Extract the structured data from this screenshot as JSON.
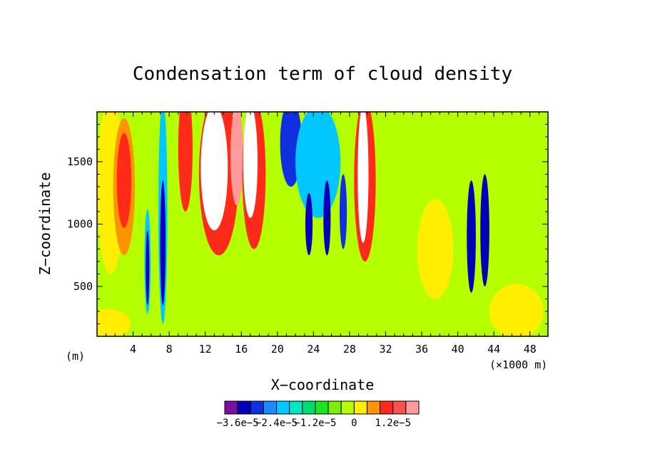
{
  "chart_data": {
    "type": "heatmap",
    "title": "Condensation term of cloud density",
    "xlabel": "X−coordinate",
    "ylabel": "Z−coordinate",
    "x_unit_left": "(m)",
    "x_unit_right": "(×1000 m)",
    "xlim": [
      0,
      50
    ],
    "ylim": [
      100,
      1900
    ],
    "x_ticks": [
      4,
      8,
      12,
      16,
      20,
      24,
      28,
      32,
      36,
      40,
      44,
      48
    ],
    "y_ticks": [
      500,
      1000,
      1500
    ],
    "colorbar": {
      "colors": [
        "#7a0fa0",
        "#0000b8",
        "#1030e0",
        "#1a8cff",
        "#00c8ff",
        "#00e6c0",
        "#00dc73",
        "#1ee61e",
        "#78f000",
        "#b4ff00",
        "#ffee00",
        "#ff9400",
        "#ff2a18",
        "#ff5050",
        "#ff9b9b"
      ],
      "labels": [
        {
          "text": "−3.6e−5",
          "boundary": 1
        },
        {
          "text": "−2.4e−5",
          "boundary": 4
        },
        {
          "text": "−1.2e−5",
          "boundary": 7
        },
        {
          "text": "0",
          "boundary": 10
        },
        {
          "text": "1.2e−5",
          "boundary": 13
        }
      ]
    },
    "fields": {
      "background": "#b4ff00",
      "blobs": [
        {
          "x": 1.5,
          "z": 1300,
          "sx": 1.5,
          "sz": 700,
          "level": "#ffee00"
        },
        {
          "x": 1.2,
          "z": 200,
          "sx": 2.5,
          "sz": 120,
          "level": "#ffee00"
        },
        {
          "x": 3.0,
          "z": 1300,
          "sx": 1.2,
          "sz": 550,
          "level": "#ff9400"
        },
        {
          "x": 3.0,
          "z": 1350,
          "sx": 0.8,
          "sz": 380,
          "level": "#ff2a18"
        },
        {
          "x": 5.6,
          "z": 700,
          "sx": 0.35,
          "sz": 420,
          "level": "#00c8ff"
        },
        {
          "x": 5.6,
          "z": 650,
          "sx": 0.2,
          "sz": 300,
          "level": "#0000b8"
        },
        {
          "x": 7.3,
          "z": 1100,
          "sx": 0.5,
          "sz": 900,
          "level": "#00c8ff"
        },
        {
          "x": 7.3,
          "z": 850,
          "sx": 0.3,
          "sz": 500,
          "level": "#0000b8"
        },
        {
          "x": 9.8,
          "z": 1600,
          "sx": 0.8,
          "sz": 500,
          "level": "#ff2a18"
        },
        {
          "x": 13.5,
          "z": 1400,
          "sx": 2.2,
          "sz": 650,
          "level": "#ff2a18"
        },
        {
          "x": 13.0,
          "z": 1450,
          "sx": 1.5,
          "sz": 500,
          "level": "#ffffff"
        },
        {
          "x": 15.5,
          "z": 1550,
          "sx": 0.7,
          "sz": 400,
          "level": "#ff9b9b"
        },
        {
          "x": 17.4,
          "z": 1400,
          "sx": 1.3,
          "sz": 600,
          "level": "#ff2a18"
        },
        {
          "x": 17.0,
          "z": 1500,
          "sx": 0.8,
          "sz": 450,
          "level": "#ffffff"
        },
        {
          "x": 21.5,
          "z": 1650,
          "sx": 1.2,
          "sz": 350,
          "level": "#1030e0"
        },
        {
          "x": 24.5,
          "z": 1500,
          "sx": 2.5,
          "sz": 450,
          "level": "#00c8ff"
        },
        {
          "x": 23.5,
          "z": 1000,
          "sx": 0.4,
          "sz": 250,
          "level": "#0000b8"
        },
        {
          "x": 25.5,
          "z": 1050,
          "sx": 0.4,
          "sz": 300,
          "level": "#0000b8"
        },
        {
          "x": 27.3,
          "z": 1100,
          "sx": 0.4,
          "sz": 300,
          "level": "#1030e0"
        },
        {
          "x": 29.7,
          "z": 1350,
          "sx": 1.2,
          "sz": 650,
          "level": "#ff2a18"
        },
        {
          "x": 29.5,
          "z": 1400,
          "sx": 0.6,
          "sz": 550,
          "level": "#ffffff"
        },
        {
          "x": 41.5,
          "z": 900,
          "sx": 0.5,
          "sz": 450,
          "level": "#0000b8"
        },
        {
          "x": 43.0,
          "z": 950,
          "sx": 0.5,
          "sz": 450,
          "level": "#0000b8"
        },
        {
          "x": 46.5,
          "z": 300,
          "sx": 3.0,
          "sz": 220,
          "level": "#ffee00"
        },
        {
          "x": 37.5,
          "z": 800,
          "sx": 2.0,
          "sz": 400,
          "level": "#ffee00"
        }
      ]
    }
  }
}
